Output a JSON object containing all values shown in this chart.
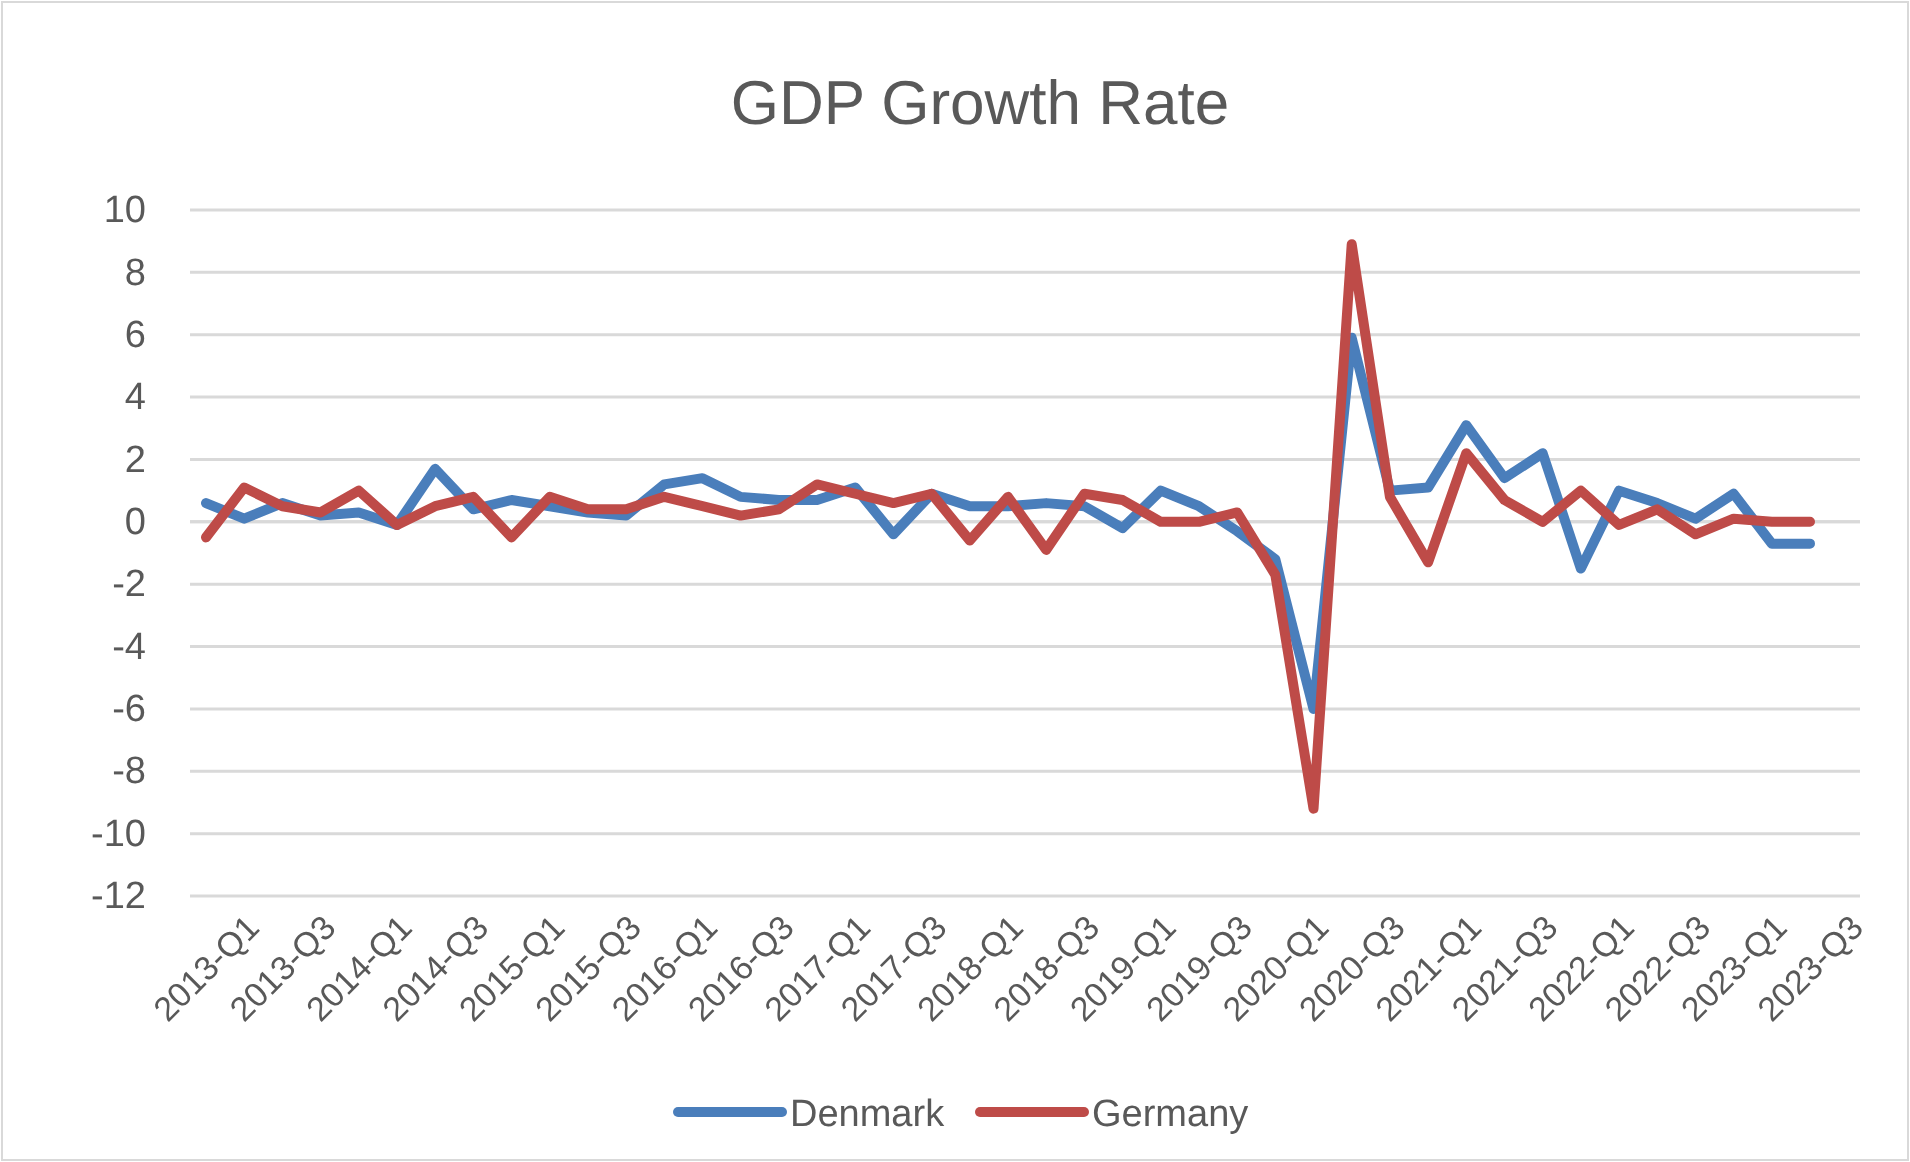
{
  "chart_data": {
    "type": "line",
    "title": "GDP Growth Rate",
    "categories": [
      "2013-Q1",
      null,
      "2013-Q3",
      null,
      "2014-Q1",
      null,
      "2014-Q3",
      null,
      "2015-Q1",
      null,
      "2015-Q3",
      null,
      "2016-Q1",
      null,
      "2016-Q3",
      null,
      "2017-Q1",
      null,
      "2017-Q3",
      null,
      "2018-Q1",
      null,
      "2018-Q3",
      null,
      "2019-Q1",
      null,
      "2019-Q3",
      null,
      "2020-Q1",
      null,
      "2020-Q3",
      null,
      "2021-Q1",
      null,
      "2021-Q3",
      null,
      "2022-Q1",
      null,
      "2022-Q3",
      null,
      "2023-Q1",
      null,
      "2023-Q3"
    ],
    "series": [
      {
        "name": "Denmark",
        "color": "#4a7ebb",
        "values": [
          0.6,
          0.1,
          0.6,
          0.2,
          0.3,
          -0.1,
          1.7,
          0.4,
          0.7,
          0.5,
          0.3,
          0.2,
          1.2,
          1.4,
          0.8,
          0.7,
          0.7,
          1.1,
          -0.4,
          0.9,
          0.5,
          0.5,
          0.6,
          0.5,
          -0.2,
          1.0,
          0.5,
          -0.3,
          -1.2,
          -6.0,
          5.9,
          1.0,
          1.1,
          3.1,
          1.4,
          2.2,
          -1.5,
          1.0,
          0.6,
          0.1,
          0.9,
          -0.7,
          -0.7
        ]
      },
      {
        "name": "Germany",
        "color": "#be4b48",
        "values": [
          -0.5,
          1.1,
          0.5,
          0.3,
          1.0,
          -0.1,
          0.5,
          0.8,
          -0.5,
          0.8,
          0.4,
          0.4,
          0.8,
          0.5,
          0.2,
          0.4,
          1.2,
          0.9,
          0.6,
          0.9,
          -0.6,
          0.8,
          -0.9,
          0.9,
          0.7,
          0.0,
          0.0,
          0.3,
          -1.7,
          -9.2,
          8.9,
          0.8,
          -1.3,
          2.2,
          0.7,
          0.0,
          1.0,
          -0.1,
          0.4,
          -0.4,
          0.1,
          0.0,
          0.0
        ]
      }
    ],
    "ylim": [
      -12,
      10
    ],
    "yticks": [
      -12,
      -10,
      -8,
      -6,
      -4,
      -2,
      0,
      2,
      4,
      6,
      8,
      10
    ],
    "grid": "y",
    "legend": "bottom",
    "marker": "none",
    "line_style": "solid"
  }
}
